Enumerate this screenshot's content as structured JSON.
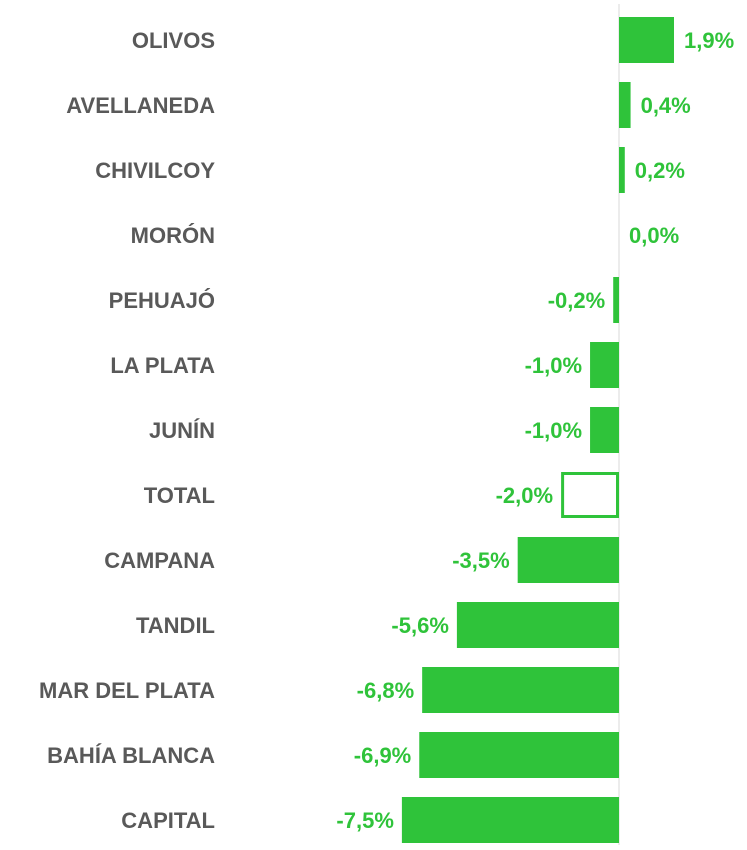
{
  "chart_data": {
    "type": "hbar",
    "categories": [
      "OLIVOS",
      "AVELLANEDA",
      "CHIVILCOY",
      "MORÓN",
      "PEHUAJÓ",
      "LA PLATA",
      "JUNÍN",
      "TOTAL",
      "CAMPANA",
      "TANDIL",
      "MAR DEL PLATA",
      "BAHÍA BLANCA",
      "CAPITAL"
    ],
    "values": [
      1.9,
      0.4,
      0.2,
      0.0,
      -0.2,
      -1.0,
      -1.0,
      -2.0,
      -3.5,
      -5.6,
      -6.8,
      -6.9,
      -7.5
    ],
    "value_labels": [
      "1,9%",
      "0,4%",
      "0,2%",
      "0,0%",
      "-0,2%",
      "-1,0%",
      "-1,0%",
      "-2,0%",
      "-3,5%",
      "-5,6%",
      "-6,8%",
      "-6,9%",
      "-7,5%"
    ],
    "color": "#2fc33a",
    "fills": [
      "#2fc33a",
      "#2fc33a",
      "#2fc33a",
      "#2fc33a",
      "#2fc33a",
      "#2fc33a",
      "#2fc33a",
      "#ffffff",
      "#2fc33a",
      "#2fc33a",
      "#2fc33a",
      "#2fc33a",
      "#2fc33a"
    ]
  }
}
